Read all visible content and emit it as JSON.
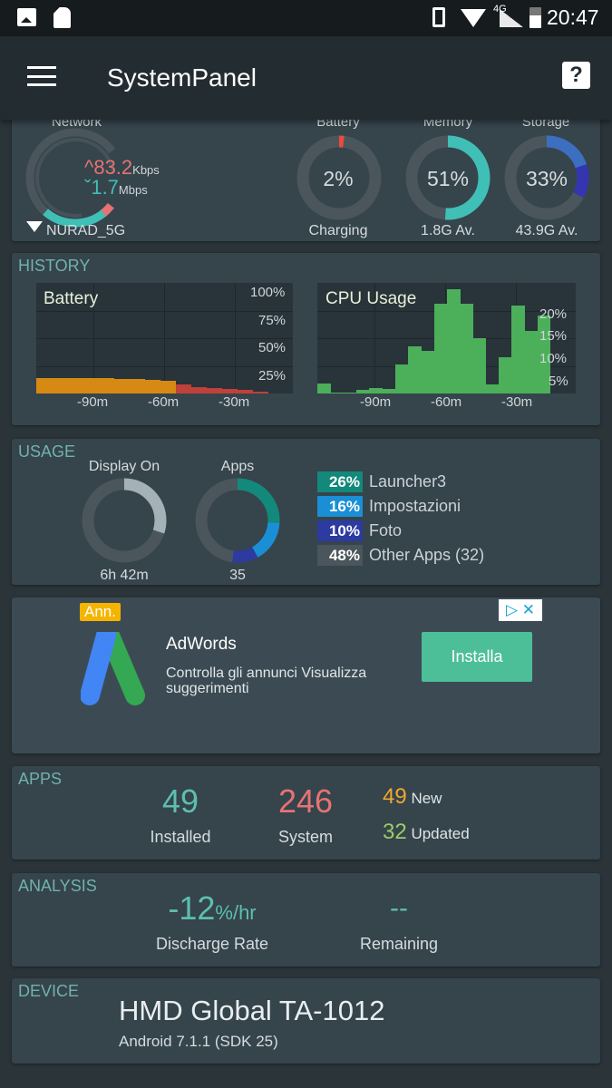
{
  "status_bar": {
    "time": "20:47",
    "network_type": "4G",
    "icons": [
      "image-icon",
      "sd-card-icon",
      "vibrate-icon",
      "wifi-icon",
      "signal-icon",
      "battery-charging-icon"
    ]
  },
  "app_bar": {
    "title": "SystemPanel",
    "menu_icon": "hamburger-icon",
    "help_icon": "help-icon"
  },
  "overview": {
    "network": {
      "label": "Network",
      "upload_value": "83.2",
      "upload_unit": "Kbps",
      "download_value": "1.7",
      "download_unit": "Mbps",
      "ssid": "NURAD_5G"
    },
    "battery": {
      "label": "Battery",
      "value": "2%",
      "percent": 2,
      "sub": "Charging",
      "color": "#e84c3d"
    },
    "memory": {
      "label": "Memory",
      "value": "51%",
      "percent": 51,
      "sub": "1.8G Av.",
      "color": "#3fbfb5"
    },
    "storage": {
      "label": "Storage",
      "value": "33%",
      "percent": 33,
      "sub": "43.9G Av.",
      "colors": [
        "#3d6fc0",
        "#3535b0"
      ]
    }
  },
  "history": {
    "title": "HISTORY"
  },
  "chart_data": [
    {
      "type": "bar",
      "title": "Battery",
      "ylim": [
        0,
        100
      ],
      "y_ticks": [
        "100%",
        "75%",
        "50%",
        "25%"
      ],
      "x_ticks": [
        "-90m",
        "-60m",
        "-30m"
      ],
      "xlabel": "",
      "ylabel": "",
      "values": [
        14,
        14,
        14,
        14,
        14,
        13.5,
        13,
        12,
        11.5,
        8,
        6,
        5,
        4,
        3,
        2
      ],
      "colors": {
        "discharging": "#d68a14",
        "low": "#c0403a"
      }
    },
    {
      "type": "bar",
      "title": "CPU Usage",
      "ylim": [
        0,
        27
      ],
      "y_ticks": [
        "20%",
        "15%",
        "10%",
        "5%"
      ],
      "x_ticks": [
        "-90m",
        "-60m",
        "-30m"
      ],
      "xlabel": "",
      "ylabel": "",
      "values": [
        2.4,
        0.3,
        0.3,
        0.8,
        1.3,
        1.1,
        7,
        11.5,
        10.4,
        22,
        25.5,
        22,
        13.5,
        2.3,
        8.8,
        21.5,
        15.3,
        19
      ],
      "color": "#4caf5a"
    }
  ],
  "usage": {
    "title": "USAGE",
    "display": {
      "label": "Display On",
      "value": "6h 42m",
      "percent": 30
    },
    "apps": {
      "label": "Apps",
      "value": "35"
    },
    "legend": [
      {
        "pct": "26%",
        "name": "Launcher3",
        "value": 26,
        "color": "#12897a"
      },
      {
        "pct": "16%",
        "name": "Impostazioni",
        "value": 16,
        "color": "#1a8fd6"
      },
      {
        "pct": "10%",
        "name": "Foto",
        "value": 10,
        "color": "#2d3aa0"
      },
      {
        "pct": "48%",
        "name": "Other Apps (32)",
        "value": 48,
        "color": "#4b565c"
      }
    ]
  },
  "ad": {
    "badge": "Ann.",
    "title": "AdWords",
    "body": "Controlla gli annunci Visualizza suggerimenti",
    "cta": "Installa"
  },
  "apps": {
    "title": "APPS",
    "installed": "49",
    "installed_label": "Installed",
    "system": "246",
    "system_label": "System",
    "new": "49",
    "new_label": "New",
    "updated": "32",
    "updated_label": "Updated"
  },
  "analysis": {
    "title": "ANALYSIS",
    "rate": "-12",
    "rate_unit": "%/hr",
    "rate_label": "Discharge Rate",
    "remaining": "--",
    "remaining_label": "Remaining"
  },
  "device": {
    "title": "DEVICE",
    "model": "HMD Global TA-1012",
    "os": "Android 7.1.1 (SDK 25)"
  }
}
